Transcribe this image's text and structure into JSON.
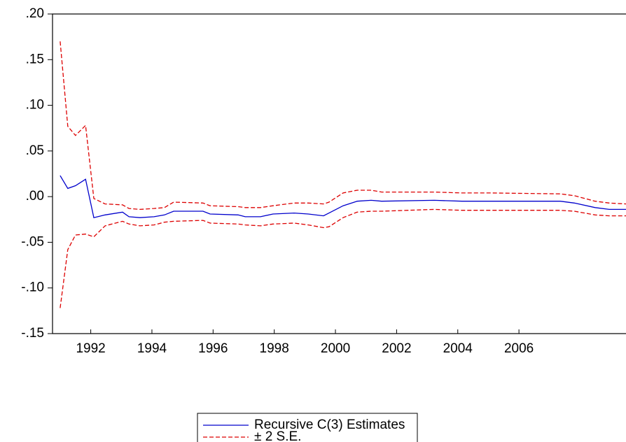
{
  "chart_data": {
    "type": "line",
    "x": [
      1991.0,
      1991.25,
      1991.5,
      1991.83,
      1992.1,
      1992.47,
      1993.04,
      1993.25,
      1993.61,
      1994.07,
      1994.41,
      1994.71,
      1995.67,
      1995.9,
      1996.82,
      1997.05,
      1997.55,
      1997.96,
      1998.65,
      1999.11,
      1999.61,
      1999.79,
      2000.25,
      2000.71,
      2001.17,
      2001.51,
      2003.23,
      2004.14,
      2005.06,
      2007.35,
      2007.81,
      2008.49,
      2008.95,
      2009.5
    ],
    "series": [
      {
        "name": "Recursive C(3) Estimates",
        "color": "#0000cc",
        "values": [
          0.023,
          0.009,
          0.012,
          0.019,
          -0.023,
          -0.02,
          -0.017,
          -0.022,
          -0.023,
          -0.022,
          -0.02,
          -0.016,
          -0.016,
          -0.019,
          -0.02,
          -0.022,
          -0.022,
          -0.019,
          -0.018,
          -0.019,
          -0.021,
          -0.018,
          -0.01,
          -0.005,
          -0.004,
          -0.005,
          -0.004,
          -0.005,
          -0.005,
          -0.005,
          -0.007,
          -0.012,
          -0.014,
          -0.014
        ]
      }
    ],
    "bands": {
      "name": "± 2 S.E.",
      "color": "#dd0000",
      "upper": [
        0.17,
        0.077,
        0.067,
        0.078,
        -0.002,
        -0.008,
        -0.009,
        -0.013,
        -0.014,
        -0.013,
        -0.012,
        -0.006,
        -0.007,
        -0.01,
        -0.011,
        -0.012,
        -0.012,
        -0.01,
        -0.007,
        -0.007,
        -0.008,
        -0.006,
        0.004,
        0.007,
        0.007,
        0.005,
        0.005,
        0.004,
        0.004,
        0.003,
        0.001,
        -0.005,
        -0.007,
        -0.008
      ],
      "lower": [
        -0.122,
        -0.058,
        -0.042,
        -0.041,
        -0.044,
        -0.032,
        -0.027,
        -0.03,
        -0.032,
        -0.031,
        -0.028,
        -0.027,
        -0.026,
        -0.029,
        -0.03,
        -0.031,
        -0.032,
        -0.03,
        -0.029,
        -0.031,
        -0.034,
        -0.033,
        -0.023,
        -0.017,
        -0.016,
        -0.016,
        -0.014,
        -0.015,
        -0.015,
        -0.015,
        -0.016,
        -0.02,
        -0.021,
        -0.021
      ]
    },
    "xlim": [
      1990.75,
      2009.5
    ],
    "xticks": [
      1992,
      1994,
      1996,
      1998,
      2000,
      2002,
      2004,
      2006
    ],
    "ylim": [
      -0.15,
      0.2
    ],
    "yticks": [
      {
        "value": 0.2,
        "label": ".20"
      },
      {
        "value": 0.15,
        "label": ".15"
      },
      {
        "value": 0.1,
        "label": ".10"
      },
      {
        "value": 0.05,
        "label": ".05"
      },
      {
        "value": 0.0,
        "label": ".00"
      },
      {
        "value": -0.05,
        "label": "-.05"
      },
      {
        "value": -0.1,
        "label": "-.10"
      },
      {
        "value": -0.15,
        "label": "-.15"
      }
    ]
  }
}
